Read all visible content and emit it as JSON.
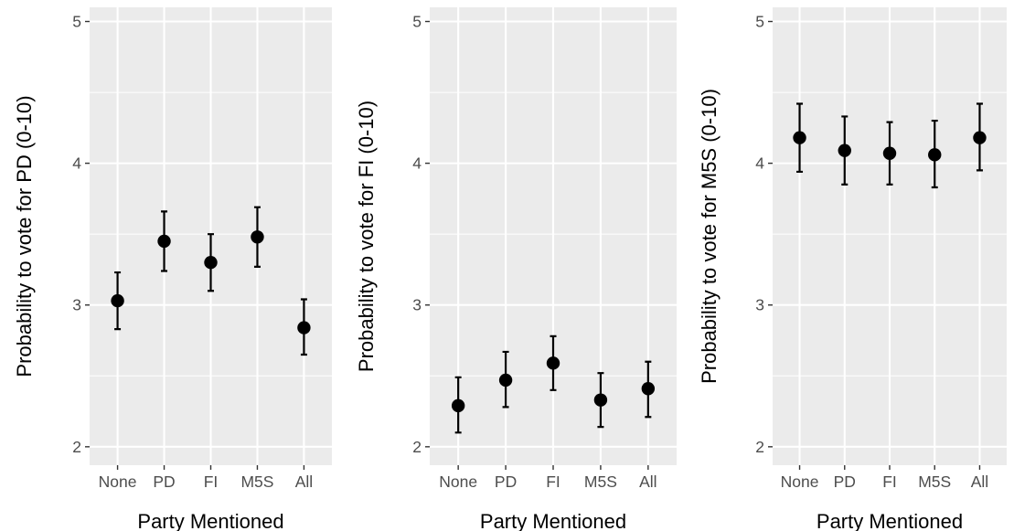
{
  "chart_data": [
    {
      "type": "scatter",
      "subtype": "point-range",
      "categories": [
        "None",
        "PD",
        "FI",
        "M5S",
        "All"
      ],
      "xlabel": "Party Mentioned",
      "ylabel": "Probability to vote for PD (0-10)",
      "ylim": [
        1.87,
        5.1
      ],
      "yticks": [
        "2",
        "3",
        "4",
        "5"
      ],
      "grid": true,
      "series": [
        {
          "values": [
            3.03,
            3.45,
            3.3,
            3.48,
            2.84
          ],
          "lower": [
            2.83,
            3.24,
            3.1,
            3.27,
            2.65
          ],
          "upper": [
            3.23,
            3.66,
            3.5,
            3.69,
            3.04
          ]
        }
      ]
    },
    {
      "type": "scatter",
      "subtype": "point-range",
      "categories": [
        "None",
        "PD",
        "FI",
        "M5S",
        "All"
      ],
      "xlabel": "Party Mentioned",
      "ylabel": "Probability to vote for FI (0-10)",
      "ylim": [
        1.87,
        5.1
      ],
      "yticks": [
        "2",
        "3",
        "4",
        "5"
      ],
      "grid": true,
      "series": [
        {
          "values": [
            2.29,
            2.47,
            2.59,
            2.33,
            2.41
          ],
          "lower": [
            2.1,
            2.28,
            2.4,
            2.14,
            2.21
          ],
          "upper": [
            2.49,
            2.67,
            2.78,
            2.52,
            2.6
          ]
        }
      ]
    },
    {
      "type": "scatter",
      "subtype": "point-range",
      "categories": [
        "None",
        "PD",
        "FI",
        "M5S",
        "All"
      ],
      "xlabel": "Party Mentioned",
      "ylabel": "Probability to vote for M5S (0-10)",
      "ylim": [
        1.87,
        5.1
      ],
      "yticks": [
        "2",
        "3",
        "4",
        "5"
      ],
      "grid": true,
      "series": [
        {
          "values": [
            4.18,
            4.09,
            4.07,
            4.06,
            4.18
          ],
          "lower": [
            3.94,
            3.85,
            3.85,
            3.83,
            3.95
          ],
          "upper": [
            4.42,
            4.33,
            4.29,
            4.3,
            4.42
          ]
        }
      ]
    }
  ]
}
